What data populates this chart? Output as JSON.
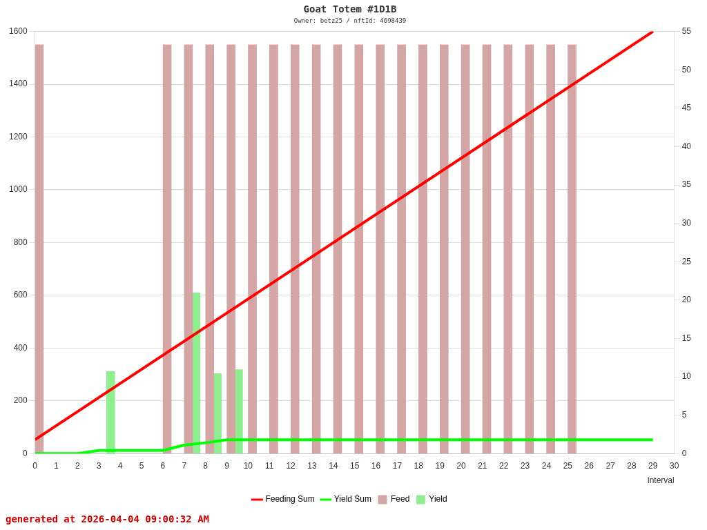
{
  "chart_data": {
    "type": "bar",
    "title": "Goat Totem #1D1B",
    "subtitle": "Owner: betz25 / nftId: 4698439",
    "xlabel": "interval",
    "xlim": [
      0,
      30
    ],
    "xticks": [
      0,
      1,
      2,
      3,
      4,
      5,
      6,
      7,
      8,
      9,
      10,
      11,
      12,
      13,
      14,
      15,
      16,
      17,
      18,
      19,
      20,
      21,
      22,
      23,
      24,
      25,
      26,
      27,
      28,
      29,
      30
    ],
    "ylim": [
      0,
      1600
    ],
    "yticks": [
      0,
      200,
      400,
      600,
      800,
      1000,
      1200,
      1400,
      1600
    ],
    "y2lim": [
      0,
      55
    ],
    "y2ticks": [
      0,
      5,
      10,
      15,
      20,
      25,
      30,
      35,
      40,
      45,
      50,
      55
    ],
    "grid": "y",
    "legend": "bottom",
    "marker": "none",
    "annotations": [
      "generated at 2026-04-04 09:00:32 AM"
    ],
    "series": [
      {
        "name": "Feeding Sum",
        "type": "line",
        "axis": "y2",
        "color": "#ff0000",
        "x": [
          0,
          29
        ],
        "values": [
          1.8,
          55
        ]
      },
      {
        "name": "Yield Sum",
        "type": "line",
        "axis": "y2",
        "color": "#00ff00",
        "x": [
          0,
          2,
          3,
          6,
          7,
          8,
          9,
          29
        ],
        "values": [
          0,
          0,
          0.4,
          0.4,
          1.1,
          1.4,
          1.8,
          1.8
        ]
      },
      {
        "name": "Feed",
        "color": "#d4a5a5",
        "x": [
          0.2,
          6.2,
          7.2,
          8.2,
          9.2,
          10.2,
          11.2,
          12.2,
          13.2,
          14.2,
          15.2,
          16.2,
          17.2,
          18.2,
          19.2,
          20.2,
          21.2,
          22.2,
          23.2,
          24.2,
          25.2
        ],
        "values": [
          1550,
          1550,
          1550,
          1550,
          1550,
          1550,
          1550,
          1550,
          1550,
          1550,
          1550,
          1550,
          1550,
          1550,
          1550,
          1550,
          1550,
          1550,
          1550,
          1550,
          1550
        ]
      },
      {
        "name": "Yield",
        "color": "#90ee90",
        "x": [
          3.55,
          7.55,
          8.55,
          9.55
        ],
        "values": [
          311,
          609,
          303,
          318
        ]
      }
    ]
  }
}
